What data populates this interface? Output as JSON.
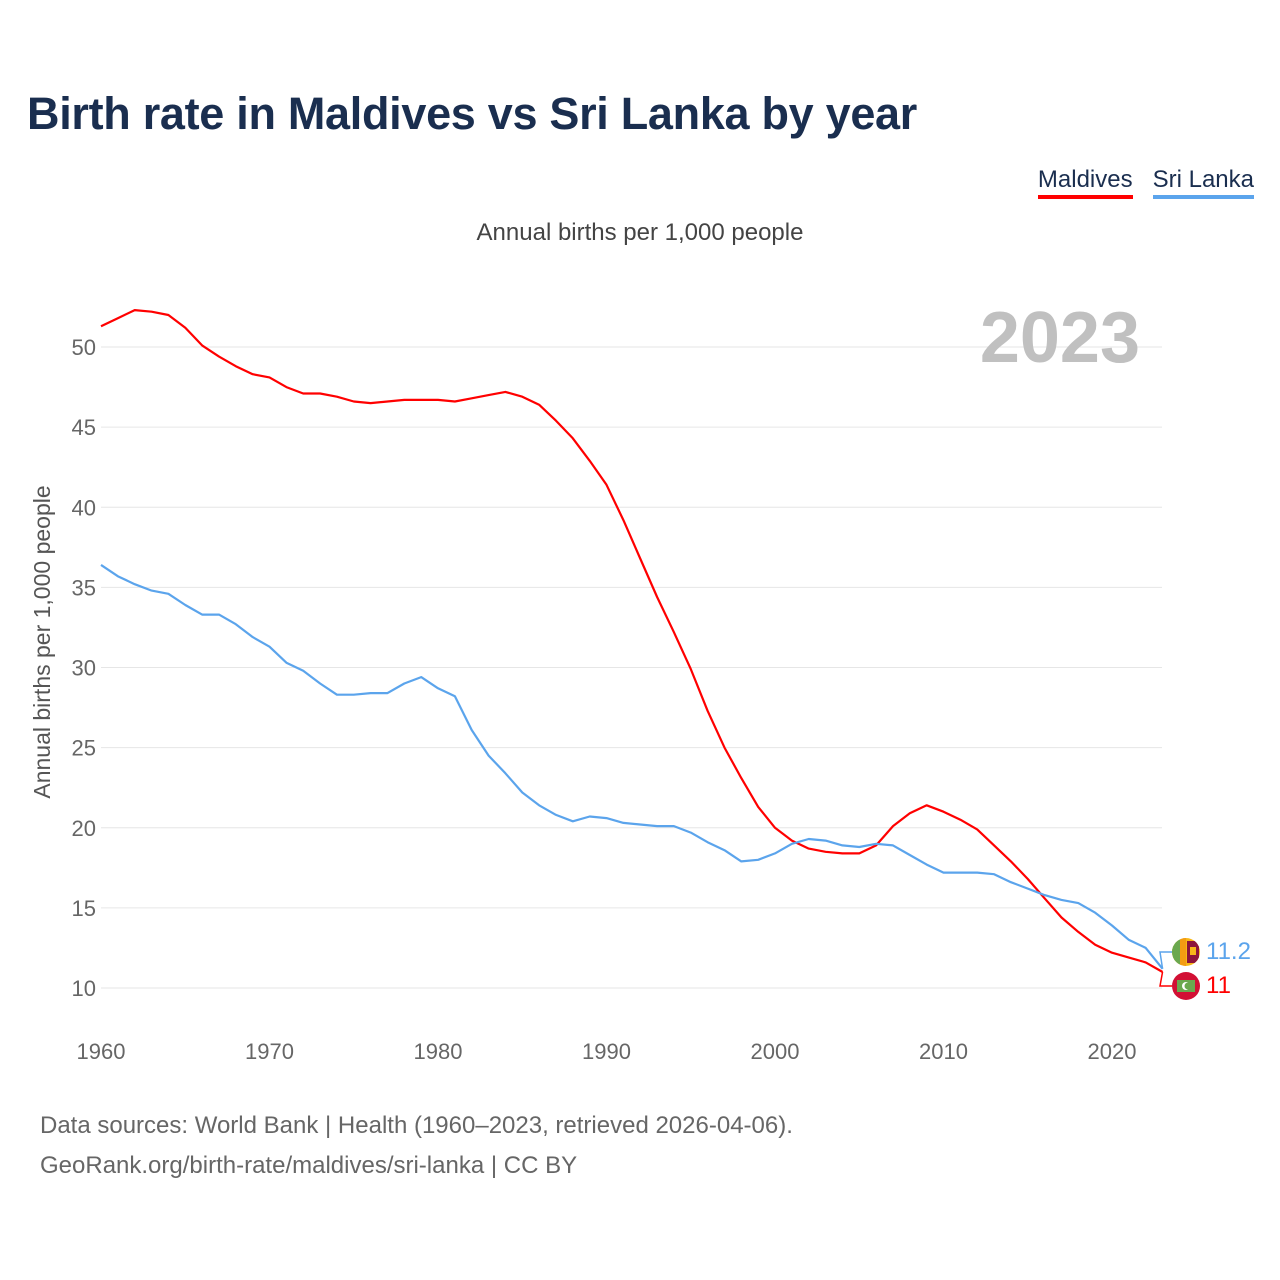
{
  "title": "Birth rate in Maldives vs Sri Lanka by year",
  "footer": {
    "line1": "Data sources: World Bank | Health (1960–2023, retrieved 2026-04-06).",
    "line2": "GeoRank.org/birth-rate/maldives/sri-lanka | CC BY"
  },
  "chart_data": {
    "type": "line",
    "title": "Birth rate in Maldives vs Sri Lanka by year",
    "subtitle": "Annual births per 1,000 people",
    "ylabel": "Annual births per 1,000 people",
    "xlabel": "",
    "year_label": "2023",
    "xlim": [
      1960,
      2023
    ],
    "ylim": [
      8,
      53
    ],
    "x_ticks": [
      1960,
      1970,
      1980,
      1990,
      2000,
      2010,
      2020
    ],
    "y_ticks": [
      10,
      15,
      20,
      25,
      30,
      35,
      40,
      45,
      50
    ],
    "grid": true,
    "legend_position": "top-right",
    "x": [
      1960,
      1961,
      1962,
      1963,
      1964,
      1965,
      1966,
      1967,
      1968,
      1969,
      1970,
      1971,
      1972,
      1973,
      1974,
      1975,
      1976,
      1977,
      1978,
      1979,
      1980,
      1981,
      1982,
      1983,
      1984,
      1985,
      1986,
      1987,
      1988,
      1989,
      1990,
      1991,
      1992,
      1993,
      1994,
      1995,
      1996,
      1997,
      1998,
      1999,
      2000,
      2001,
      2002,
      2003,
      2004,
      2005,
      2006,
      2007,
      2008,
      2009,
      2010,
      2011,
      2012,
      2013,
      2014,
      2015,
      2016,
      2017,
      2018,
      2019,
      2020,
      2021,
      2022,
      2023
    ],
    "series": [
      {
        "name": "Maldives",
        "color": "#ff0000",
        "end_label": "11",
        "values": [
          51.3,
          51.8,
          52.3,
          52.2,
          52.0,
          51.2,
          50.1,
          49.4,
          48.8,
          48.3,
          48.1,
          47.5,
          47.1,
          47.1,
          46.9,
          46.6,
          46.5,
          46.6,
          46.7,
          46.7,
          46.7,
          46.6,
          46.8,
          47.0,
          47.2,
          46.9,
          46.4,
          45.4,
          44.3,
          42.9,
          41.4,
          39.2,
          36.8,
          34.4,
          32.2,
          29.9,
          27.3,
          25.0,
          23.1,
          21.3,
          20.0,
          19.2,
          18.7,
          18.5,
          18.4,
          18.4,
          18.9,
          20.1,
          20.9,
          21.4,
          21.0,
          20.5,
          19.9,
          18.9,
          17.9,
          16.8,
          15.6,
          14.4,
          13.5,
          12.7,
          12.2,
          11.9,
          11.6,
          11.0
        ]
      },
      {
        "name": "Sri Lanka",
        "color": "#5ba4ec",
        "end_label": "11.2",
        "values": [
          36.4,
          35.7,
          35.2,
          34.8,
          34.6,
          33.9,
          33.3,
          33.3,
          32.7,
          31.9,
          31.3,
          30.3,
          29.8,
          29.0,
          28.3,
          28.3,
          28.4,
          28.4,
          29.0,
          29.4,
          28.7,
          28.2,
          26.1,
          24.5,
          23.4,
          22.2,
          21.4,
          20.8,
          20.4,
          20.7,
          20.6,
          20.3,
          20.2,
          20.1,
          20.1,
          19.7,
          19.1,
          18.6,
          17.9,
          18.0,
          18.4,
          19.0,
          19.3,
          19.2,
          18.9,
          18.8,
          19.0,
          18.9,
          18.3,
          17.7,
          17.2,
          17.2,
          17.2,
          17.1,
          16.6,
          16.2,
          15.8,
          15.5,
          15.3,
          14.7,
          13.9,
          13.0,
          12.5,
          11.2
        ]
      }
    ]
  }
}
